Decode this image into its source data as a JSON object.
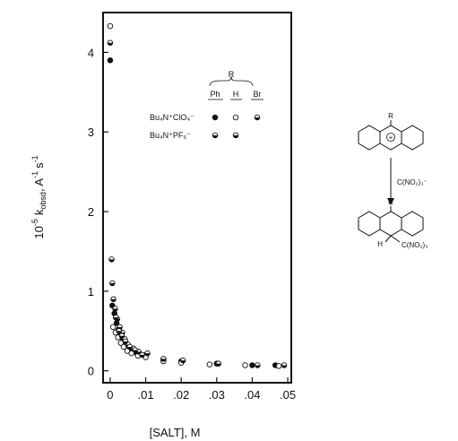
{
  "chart_data": {
    "type": "scatter",
    "title": "",
    "xlabel": "[SALT], M",
    "ylabel_parts": {
      "prefix": "10",
      "prefix_exp": "-5",
      "k": "k",
      "k_sub": "obsd",
      "tail": ", A",
      "tail_exp": "-1",
      "tail2": "s",
      "tail2_exp": "-1"
    },
    "xlim": [
      -0.002,
      0.051
    ],
    "ylim": [
      -0.15,
      4.5
    ],
    "x_ticks": [
      {
        "value": 0,
        "label": "0"
      },
      {
        "value": 0.01,
        "label": ".01"
      },
      {
        "value": 0.02,
        "label": ".02"
      },
      {
        "value": 0.03,
        "label": ".03"
      },
      {
        "value": 0.04,
        "label": ".04"
      },
      {
        "value": 0.05,
        "label": ".05"
      }
    ],
    "y_ticks": [
      {
        "value": 0,
        "label": "0"
      },
      {
        "value": 1,
        "label": "1"
      },
      {
        "value": 2,
        "label": "2"
      },
      {
        "value": 3,
        "label": "3"
      },
      {
        "value": 4,
        "label": "4"
      }
    ],
    "legend": {
      "group_label": "R",
      "columns": [
        "Ph",
        "H",
        "Br"
      ],
      "rows": [
        {
          "name": "Bu4N+ClO4-",
          "text": "Bu₄N⁺ClO₄⁻"
        },
        {
          "name": "Bu4N+PF6-",
          "text": "Bu₄N⁺PF₆⁻"
        }
      ]
    },
    "marker_styles": {
      "filled": "#111111",
      "open": "#ffffff",
      "half": "#111111"
    },
    "series": [
      {
        "salt": "ClO4",
        "substituent": "Ph",
        "marker": "filled",
        "points": [
          [
            0.0,
            3.9
          ],
          [
            0.0006,
            0.82
          ],
          [
            0.0012,
            0.72
          ],
          [
            0.0018,
            0.6
          ],
          [
            0.0024,
            0.52
          ],
          [
            0.003,
            0.46
          ],
          [
            0.0036,
            0.4
          ],
          [
            0.0045,
            0.33
          ],
          [
            0.006,
            0.27
          ],
          [
            0.0075,
            0.22
          ],
          [
            0.01,
            0.2
          ],
          [
            0.015,
            0.14
          ],
          [
            0.02,
            0.12
          ],
          [
            0.03,
            0.09
          ],
          [
            0.04,
            0.07
          ],
          [
            0.0465,
            0.07
          ]
        ]
      },
      {
        "salt": "ClO4",
        "substituent": "H",
        "marker": "open",
        "points": [
          [
            0.0,
            4.33
          ],
          [
            0.0008,
            0.55
          ],
          [
            0.0015,
            0.48
          ],
          [
            0.0022,
            0.42
          ],
          [
            0.003,
            0.35
          ],
          [
            0.0038,
            0.3
          ],
          [
            0.0048,
            0.25
          ],
          [
            0.006,
            0.22
          ],
          [
            0.0078,
            0.19
          ],
          [
            0.01,
            0.17
          ],
          [
            0.015,
            0.12
          ],
          [
            0.02,
            0.1
          ],
          [
            0.028,
            0.08
          ],
          [
            0.038,
            0.07
          ],
          [
            0.0475,
            0.06
          ]
        ]
      },
      {
        "salt": "ClO4",
        "substituent": "Br",
        "marker": "half",
        "points": [
          [
            0.0,
            4.12
          ],
          [
            0.0004,
            1.4
          ],
          [
            0.0006,
            1.1
          ],
          [
            0.0009,
            0.9
          ],
          [
            0.0014,
            0.78
          ],
          [
            0.002,
            0.65
          ],
          [
            0.0027,
            0.55
          ],
          [
            0.0034,
            0.48
          ],
          [
            0.0041,
            0.4
          ],
          [
            0.005,
            0.33
          ],
          [
            0.0065,
            0.28
          ],
          [
            0.008,
            0.24
          ],
          [
            0.0105,
            0.22
          ],
          [
            0.015,
            0.15
          ],
          [
            0.0205,
            0.13
          ],
          [
            0.0305,
            0.09
          ],
          [
            0.0415,
            0.07
          ],
          [
            0.049,
            0.07
          ]
        ]
      },
      {
        "salt": "PF6",
        "substituent": "H",
        "marker": "half",
        "points": [
          [
            0.0016,
            0.67
          ],
          [
            0.0025,
            0.5
          ],
          [
            0.0033,
            0.44
          ],
          [
            0.0043,
            0.37
          ],
          [
            0.0055,
            0.3
          ],
          [
            0.007,
            0.26
          ],
          [
            0.009,
            0.2
          ]
        ]
      }
    ]
  },
  "scheme": {
    "substituent": "R",
    "cation_charge": "+",
    "reagent": "C(NO₂)₃⁻",
    "product_H": "H",
    "product_group": "C(NO₂)₃"
  }
}
